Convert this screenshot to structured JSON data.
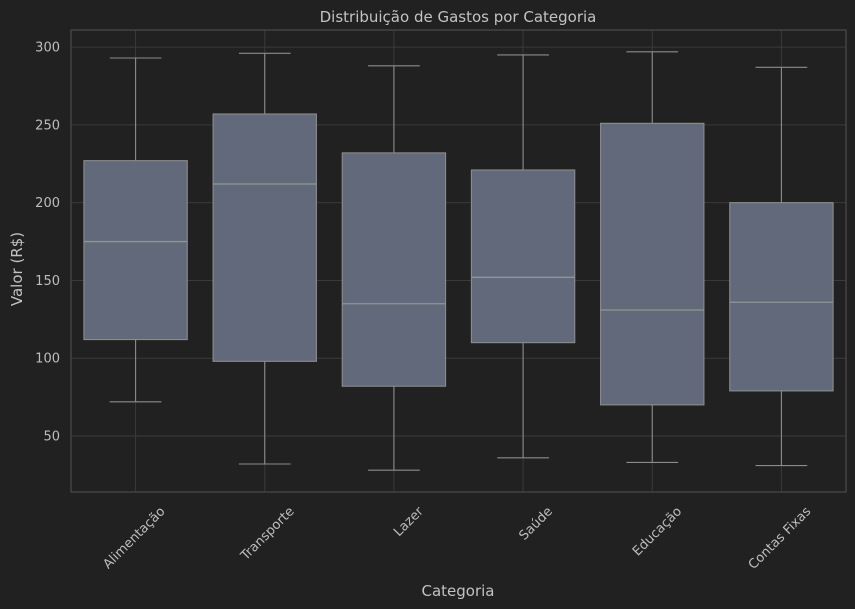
{
  "chart_data": {
    "type": "box",
    "title": "Distribuição de Gastos por Categoria",
    "xlabel": "Categoria",
    "ylabel": "Valor (R$)",
    "ylim": [
      14,
      311
    ],
    "yticks": [
      50,
      100,
      150,
      200,
      250,
      300
    ],
    "grid": true,
    "categories": [
      "Alimentação",
      "Transporte",
      "Lazer",
      "Saúde",
      "Educação",
      "Contas Fixas"
    ],
    "boxes": [
      {
        "whisker_low": 72,
        "q1": 112,
        "median": 175,
        "q3": 227,
        "whisker_high": 293
      },
      {
        "whisker_low": 32,
        "q1": 98,
        "median": 212,
        "q3": 257,
        "whisker_high": 296
      },
      {
        "whisker_low": 28,
        "q1": 82,
        "median": 135,
        "q3": 232,
        "whisker_high": 288
      },
      {
        "whisker_low": 36,
        "q1": 110,
        "median": 152,
        "q3": 221,
        "whisker_high": 295
      },
      {
        "whisker_low": 33,
        "q1": 70,
        "median": 131,
        "q3": 251,
        "whisker_high": 297
      },
      {
        "whisker_low": 31,
        "q1": 79,
        "median": 136,
        "q3": 200,
        "whisker_high": 287
      }
    ],
    "colors": {
      "background": "#212121",
      "box_fill": "#62697a",
      "box_edge": "#8c8c8c",
      "median": "#8a9a93",
      "whisker": "#8c8c8c",
      "grid": "#3a3a3a",
      "spine": "#4a4a4a"
    }
  }
}
